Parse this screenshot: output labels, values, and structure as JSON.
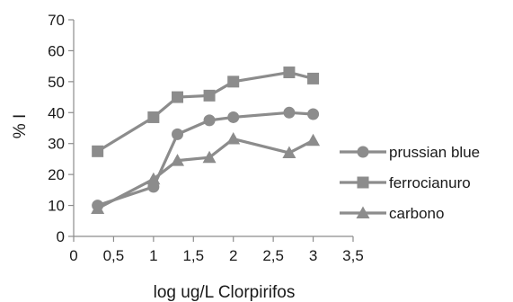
{
  "chart_data": {
    "type": "line",
    "xlabel": "log ug/L Clorpirifos",
    "ylabel": "% I",
    "xlim": [
      0,
      3.5
    ],
    "ylim": [
      0,
      70
    ],
    "x_ticks": [
      0,
      0.5,
      1,
      1.5,
      2,
      2.5,
      3,
      3.5
    ],
    "x_tick_labels": [
      "0",
      "0,5",
      "1",
      "1,5",
      "2",
      "2,5",
      "3",
      "3,5"
    ],
    "y_ticks": [
      0,
      10,
      20,
      30,
      40,
      50,
      60,
      70
    ],
    "y_tick_labels": [
      "0",
      "10",
      "20",
      "30",
      "40",
      "50",
      "60",
      "70"
    ],
    "grid": false,
    "legend": "right",
    "series": [
      {
        "name": "prussian blue",
        "marker": "circle",
        "color": "#8c8c8c",
        "x": [
          0.3,
          1.0,
          1.3,
          1.7,
          2.0,
          2.7,
          3.0
        ],
        "y": [
          10,
          16,
          33,
          37.5,
          38.5,
          40,
          39.5
        ]
      },
      {
        "name": "ferrocianuro",
        "marker": "square",
        "color": "#8c8c8c",
        "x": [
          0.3,
          1.0,
          1.3,
          1.7,
          2.0,
          2.7,
          3.0
        ],
        "y": [
          27.5,
          38.5,
          45,
          45.5,
          50,
          53,
          51
        ]
      },
      {
        "name": "carbono",
        "marker": "triangle",
        "color": "#8c8c8c",
        "x": [
          0.3,
          1.0,
          1.3,
          1.7,
          2.0,
          2.7,
          3.0
        ],
        "y": [
          9,
          18.5,
          24.5,
          25.5,
          31.5,
          27,
          31
        ]
      }
    ]
  }
}
